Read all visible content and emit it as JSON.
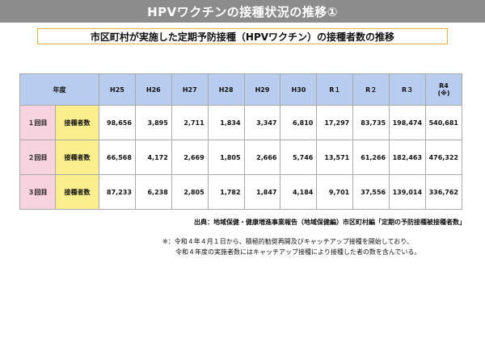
{
  "title": "HPVワクチンの接種状況の推移①",
  "subtitle": "市区町村が実施した定期予防接種（HPVワクチン）の接種者数の推移",
  "table": {
    "corner": "年度",
    "years": [
      "H25",
      "H26",
      "H27",
      "H28",
      "H29",
      "H30",
      "R１",
      "R２",
      "R３",
      "R4"
    ],
    "r4_note": "(※)",
    "row_label": "接種者数",
    "rows": [
      {
        "round": "１回目",
        "values": [
          "98,656",
          "3,895",
          "2,711",
          "1,834",
          "3,347",
          "6,810",
          "17,297",
          "83,735",
          "198,474",
          "540,681"
        ]
      },
      {
        "round": "２回目",
        "values": [
          "66,568",
          "4,172",
          "2,669",
          "1,805",
          "2,666",
          "5,746",
          "13,571",
          "61,266",
          "182,463",
          "476,322"
        ]
      },
      {
        "round": "３回目",
        "values": [
          "87,233",
          "6,238",
          "2,805",
          "1,782",
          "1,847",
          "4,184",
          "9,701",
          "37,556",
          "139,014",
          "336,762"
        ]
      }
    ]
  },
  "source": "出典：地域保健・健康増進事業報告（地域保健編）市区町村編「定期の予防接種被接種者数」",
  "note": {
    "line1": "※：令和４年４月１日から、積極的勧奨再開及びキャッチアップ接種を開始しており、",
    "line2": "令和４年度の実施者数にはキャッチアップ接種により接種した者の数を含んでいる。"
  },
  "colors": {
    "title_bg": "#8c8c8c",
    "subtitle_border": "#e3b53a",
    "header_bg": "#b8ccf0",
    "round_bg": "#f6d3de",
    "label_bg": "#fbee8c"
  }
}
